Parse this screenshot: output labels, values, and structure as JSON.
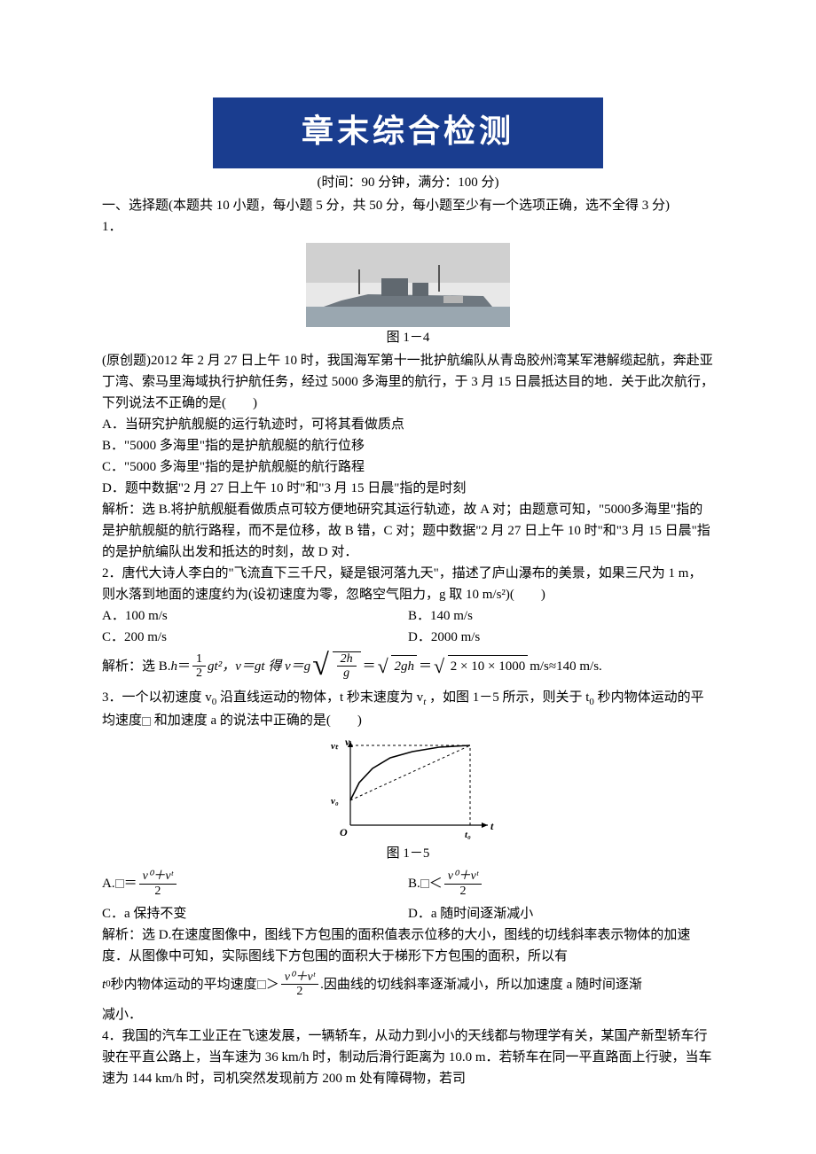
{
  "banner": {
    "text": "章末综合检测",
    "bg": "#1a3d8f",
    "fg": "#ffffff"
  },
  "exam_meta": "(时间：90 分钟，满分：100 分)",
  "section_intro": "一、选择题(本题共 10 小题，每小题 5 分，共 50 分，每小题至少有一个选项正确，选不全得 3 分)",
  "q1": {
    "num": "1．",
    "fig_caption": "图 1－4",
    "stem": "(原创题)2012 年 2 月 27 日上午 10 时，我国海军第十一批护航编队从青岛胶州湾某军港解缆起航，奔赴亚丁湾、索马里海域执行护航任务，经过 5000 多海里的航行，于 3 月 15 日晨抵达目的地．关于此次航行，下列说法不正确的是(　　)",
    "A": "A．当研究护航舰艇的运行轨迹时，可将其看做质点",
    "B": "B．\"5000 多海里\"指的是护航舰艇的航行位移",
    "C": "C．\"5000 多海里\"指的是护航舰艇的航行路程",
    "D": "D．题中数据\"2 月 27 日上午 10 时\"和\"3 月 15 日晨\"指的是时刻",
    "sol": "解析：选 B.将护航舰艇看做质点可较方便地研究其运行轨迹，故 A 对；由题意可知，\"5000多海里\"指的是护航舰艇的航行路程，而不是位移，故 B 错，C 对；题中数据\"2 月 27 日上午 10 时\"和\"3 月 15 日晨\"指的是护航编队出发和抵达的时刻，故 D 对．"
  },
  "q2": {
    "stem": "2．唐代大诗人李白的\"飞流直下三千尺，疑是银河落九天\"，描述了庐山瀑布的美景，如果三尺为 1 m，则水落到地面的速度约为(设初速度为零，忽略空气阻力，g 取 10 m/s²)(　　)",
    "A": "A．100 m/s",
    "B": "B．140 m/s",
    "C": "C．200 m/s",
    "D": "D．2000 m/s",
    "sol_prefix": "解析：选 B.",
    "sol_h_eq_a": "h",
    "sol_h_eq_b": "＝",
    "frac1_num": "1",
    "frac1_den": "2",
    "sol_gt2": "gt²，",
    "sol_vgt": "v＝gt 得 v＝g",
    "sqrt1_num": "2h",
    "sqrt1_den": "g",
    "eq2": "＝",
    "sqrt2": "2gh",
    "eq3": "＝",
    "sqrt3": "2 × 10 × 1000",
    "sol_tail": "m/s≈140 m/s."
  },
  "q3": {
    "stem_a": "3．一个以初速度 v",
    "stem_b": "沿直线运动的物体，t 秒末速度为 v",
    "stem_c": "，如图 1－5 所示，则关于 t",
    "stem_d": " 秒内物体运动的平均速度",
    "stem_e": "和加速度 a 的说法中正确的是(　　)",
    "fig_caption": "图 1－5",
    "optA_pre": "A.",
    "optA_mid": "＝",
    "optB_pre": "B.",
    "optB_mid": "＜",
    "frac_num": "v⁰＋vᵗ",
    "frac_den": "2",
    "C": "C．a 保持不变",
    "D": "D．a 随时间逐渐减小",
    "sol_a": "解析：选 D.在速度图像中，图线下方包围的面积值表示位移的大小，图线的切线斜率表示物体的加速度．从图像中可知，实际图线下方包围的面积大于梯形下方包围的面积，所以有",
    "sol_b_pre": "t",
    "sol_b_mid": " 秒内物体运动的平均速度",
    "sol_b_gt": "＞",
    "sol_b_tail": ".因曲线的切线斜率逐渐减小，所以加速度 a 随时间逐渐",
    "sol_c": "减小．",
    "curve": {
      "type": "line",
      "axis_color": "#000000",
      "curve_color": "#000000",
      "dash_color": "#000000",
      "x_label": "t",
      "y_label": "v",
      "y0_label": "v₀",
      "yt_label": "vₜ",
      "x0_label": "t₀",
      "origin_label": "O",
      "points": [
        [
          0,
          28
        ],
        [
          10,
          48
        ],
        [
          25,
          64
        ],
        [
          45,
          76
        ],
        [
          70,
          83
        ],
        [
          100,
          88
        ],
        [
          135,
          90
        ]
      ],
      "v0": 28,
      "vt": 90,
      "t0": 135,
      "xlim": [
        0,
        160
      ],
      "ylim": [
        0,
        110
      ]
    }
  },
  "q4": {
    "stem": "4．我国的汽车工业正在飞速发展，一辆轿车，从动力到小小的天线都与物理学有关，某国产新型轿车行驶在平直公路上，当车速为 36 km/h 时，制动后滑行距离为 10.0 m．若轿车在同一平直路面上行驶，当车速为 144 km/h 时，司机突然发现前方 200 m 处有障碍物，若司"
  }
}
